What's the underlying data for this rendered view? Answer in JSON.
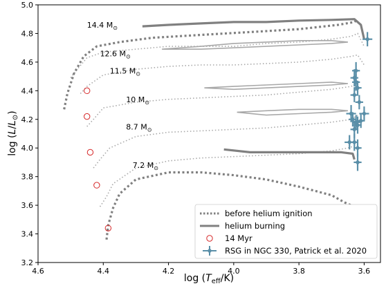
{
  "chart_data": {
    "type": "line",
    "xlabel_main": "log (",
    "xlabel_t": "T",
    "xlabel_sub": "eff",
    "xlabel_end": "/K)",
    "ylabel_main": "log (",
    "ylabel_l": "L",
    "ylabel_slash": "/",
    "ylabel_l2": "L",
    "ylabel_sun": "⊙",
    "ylabel_end": ")",
    "xlim": [
      4.6,
      3.55
    ],
    "ylim": [
      3.2,
      5.0
    ],
    "x_ticks": [
      "4.6",
      "4.4",
      "4.2",
      "4.0",
      "3.8",
      "3.6"
    ],
    "x_tick_values": [
      4.6,
      4.4,
      4.2,
      4.0,
      3.8,
      3.6
    ],
    "y_ticks": [
      "3.2",
      "3.4",
      "3.6",
      "3.8",
      "4.0",
      "4.2",
      "4.4",
      "4.6",
      "4.8",
      "5.0"
    ],
    "y_tick_values": [
      3.2,
      3.4,
      3.6,
      3.8,
      4.0,
      4.2,
      4.4,
      4.6,
      4.8,
      5.0
    ],
    "colors": {
      "track": "#808080",
      "track_light": "#a8a8a8",
      "isochrone": "#a8a8a8",
      "marker": "#d62728",
      "rsg": "#5a8fa8"
    },
    "mass_labels": [
      {
        "text": "14.4 M",
        "x": 4.45,
        "y": 4.84
      },
      {
        "text": "12.6 M",
        "x": 4.41,
        "y": 4.64
      },
      {
        "text": "11.5 M",
        "x": 4.38,
        "y": 4.52
      },
      {
        "text": "10 M",
        "x": 4.33,
        "y": 4.32
      },
      {
        "text": "8.7 M",
        "x": 4.33,
        "y": 4.13
      },
      {
        "text": "7.2 M",
        "x": 4.31,
        "y": 3.86
      }
    ],
    "mass_label_sun": "⊙",
    "before_helium_tracks": [
      {
        "name": "14.4",
        "x": [
          4.52,
          4.51,
          4.49,
          4.46,
          4.42,
          4.35,
          4.25,
          4.1,
          3.95,
          3.8,
          3.68,
          3.63,
          3.62
        ],
        "y": [
          4.27,
          4.38,
          4.52,
          4.64,
          4.71,
          4.74,
          4.77,
          4.79,
          4.81,
          4.83,
          4.86,
          4.88,
          4.9
        ]
      },
      {
        "name": "7.2",
        "x": [
          4.39,
          4.385,
          4.37,
          4.35,
          4.3,
          4.2,
          4.1,
          4.0,
          3.9,
          3.8,
          3.7,
          3.66,
          3.64
        ],
        "y": [
          3.36,
          3.46,
          3.58,
          3.68,
          3.78,
          3.83,
          3.83,
          3.81,
          3.78,
          3.73,
          3.67,
          3.62,
          3.6
        ]
      }
    ],
    "helium_tracks": [
      {
        "name": "14.4",
        "x": [
          4.28,
          4.2,
          4.1,
          4.0,
          3.9,
          3.8,
          3.7,
          3.63,
          3.61,
          3.6
        ],
        "y": [
          4.85,
          4.86,
          4.87,
          4.88,
          4.88,
          4.89,
          4.895,
          4.9,
          4.86,
          4.76
        ]
      },
      {
        "name": "7.2",
        "x": [
          4.03,
          3.95,
          3.85,
          3.75,
          3.67,
          3.635,
          3.63
        ],
        "y": [
          3.99,
          3.97,
          3.97,
          3.97,
          3.97,
          3.96,
          3.92
        ]
      }
    ],
    "isochrone_tracks": [
      {
        "name": "12.6",
        "x": [
          4.5,
          4.48,
          4.45,
          4.4,
          4.3,
          4.2,
          4.1,
          4.0,
          3.9,
          3.8,
          3.7,
          3.64,
          3.62,
          3.6
        ],
        "y": [
          4.49,
          4.55,
          4.63,
          4.67,
          4.69,
          4.71,
          4.71,
          4.71,
          4.73,
          4.74,
          4.76,
          4.78,
          4.8,
          4.71
        ]
      },
      {
        "name": "11.5",
        "x": [
          4.47,
          4.45,
          4.4,
          4.3,
          4.2,
          4.1,
          4.0,
          3.9,
          3.8,
          3.7,
          3.64,
          3.62,
          3.6
        ],
        "y": [
          4.38,
          4.43,
          4.51,
          4.55,
          4.57,
          4.58,
          4.58,
          4.59,
          4.6,
          4.62,
          4.64,
          4.65,
          4.58
        ]
      },
      {
        "name": "10",
        "x": [
          4.45,
          4.43,
          4.4,
          4.3,
          4.2,
          4.1,
          4.0,
          3.9,
          3.8,
          3.7,
          3.64,
          3.62
        ],
        "y": [
          4.15,
          4.2,
          4.28,
          4.32,
          4.34,
          4.35,
          4.36,
          4.37,
          4.39,
          4.41,
          4.43,
          4.45
        ]
      },
      {
        "name": "8.7",
        "x": [
          4.43,
          4.41,
          4.38,
          4.3,
          4.2,
          4.1,
          4.0,
          3.9,
          3.8,
          3.7,
          3.64,
          3.62
        ],
        "y": [
          3.86,
          3.92,
          4.0,
          4.08,
          4.11,
          4.12,
          4.13,
          4.14,
          4.16,
          4.18,
          4.2,
          4.23
        ]
      },
      {
        "name": "7.2b",
        "x": [
          4.41,
          4.39,
          4.37,
          4.3,
          4.2,
          4.1,
          4.0,
          3.9,
          3.8,
          3.7,
          3.65,
          3.62
        ],
        "y": [
          3.59,
          3.66,
          3.75,
          3.86,
          3.91,
          3.93,
          3.94,
          3.95,
          3.96,
          3.98,
          4.0,
          4.02
        ]
      },
      {
        "name": "loop1",
        "x": [
          4.22,
          4.1,
          4.0,
          3.9,
          3.8,
          3.7,
          3.65,
          3.7,
          3.8,
          3.9,
          4.0,
          4.1,
          4.22
        ],
        "y": [
          4.69,
          4.71,
          4.73,
          4.74,
          4.75,
          4.75,
          4.74,
          4.73,
          4.72,
          4.71,
          4.7,
          4.69,
          4.69
        ]
      },
      {
        "name": "loop2",
        "x": [
          4.09,
          4.0,
          3.9,
          3.8,
          3.7,
          3.65,
          3.7,
          3.8,
          3.9,
          4.0,
          4.09
        ],
        "y": [
          4.42,
          4.43,
          4.44,
          4.45,
          4.46,
          4.45,
          4.44,
          4.43,
          4.42,
          4.41,
          4.42
        ]
      },
      {
        "name": "loop3",
        "x": [
          3.99,
          3.9,
          3.8,
          3.7,
          3.65,
          3.7,
          3.8,
          3.9,
          3.99
        ],
        "y": [
          4.25,
          4.26,
          4.27,
          4.27,
          4.26,
          4.25,
          4.24,
          4.23,
          4.25
        ]
      }
    ],
    "myr14_points": {
      "x": [
        4.45,
        4.45,
        4.44,
        4.42,
        4.385
      ],
      "y": [
        4.4,
        4.22,
        3.97,
        3.74,
        3.44
      ]
    },
    "rsg_points": {
      "x": [
        3.59,
        3.625,
        3.63,
        3.625,
        3.62,
        3.63,
        3.615,
        3.64,
        3.635,
        3.6,
        3.625,
        3.62,
        3.63,
        3.645,
        3.63,
        3.62,
        3.61,
        3.62
      ],
      "y": [
        4.76,
        4.54,
        4.49,
        4.46,
        4.42,
        4.37,
        4.32,
        4.24,
        4.2,
        4.24,
        4.18,
        4.16,
        4.13,
        4.04,
        4.04,
        4.0,
        4.19,
        3.9
      ],
      "xerr": [
        0.015,
        0.012,
        0.012,
        0.012,
        0.012,
        0.012,
        0.012,
        0.015,
        0.012,
        0.015,
        0.012,
        0.012,
        0.012,
        0.015,
        0.012,
        0.012,
        0.012,
        0.012
      ],
      "yerr": [
        0.05,
        0.06,
        0.06,
        0.06,
        0.05,
        0.05,
        0.05,
        0.06,
        0.05,
        0.05,
        0.05,
        0.06,
        0.06,
        0.05,
        0.06,
        0.06,
        0.05,
        0.06
      ]
    },
    "legend": [
      {
        "label": "before helium ignition",
        "style": "dotted"
      },
      {
        "label": "helium burning",
        "style": "solid"
      },
      {
        "label": "14 Myr",
        "style": "circle"
      },
      {
        "label": "RSG in NGC 330, Patrick et al. 2020",
        "style": "errorbar"
      }
    ],
    "legend_placement": "bottom-right"
  }
}
